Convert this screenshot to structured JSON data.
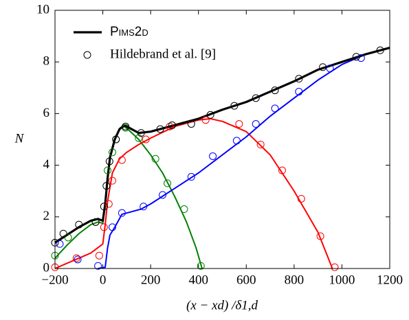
{
  "chart_data": {
    "type": "line",
    "ylabel": "N",
    "xlabel": "(x − xd) /δ1,d",
    "xlim": [
      -200,
      1200
    ],
    "ylim": [
      0,
      10
    ],
    "xticks": [
      {
        "value": -200,
        "label": "−200"
      },
      0,
      200,
      400,
      600,
      800,
      1000,
      1200
    ],
    "yticks": [
      0,
      2,
      4,
      6,
      8,
      10
    ],
    "grid": false,
    "legend": [
      "Pims2d",
      "Hildebrand et al. [9]"
    ],
    "legend_position": "upper left",
    "series": [
      {
        "style": "line",
        "color": "#008000",
        "x": [
          -200,
          -150,
          -100,
          -50,
          -20,
          0,
          10,
          20,
          30,
          50,
          70,
          90,
          110,
          150,
          200,
          250,
          300,
          350,
          390,
          415
        ],
        "values": [
          0.4,
          0.9,
          1.35,
          1.7,
          1.8,
          1.75,
          2.5,
          3.5,
          4.3,
          5.0,
          5.4,
          5.5,
          5.35,
          5.0,
          4.4,
          3.7,
          2.8,
          1.8,
          0.8,
          0
        ]
      },
      {
        "style": "line",
        "color": "#ff0000",
        "x": [
          -200,
          -150,
          -100,
          -50,
          0,
          10,
          20,
          40,
          70,
          100,
          150,
          200,
          300,
          400,
          450,
          500,
          600,
          700,
          800,
          900,
          960
        ],
        "values": [
          0,
          0.2,
          0.4,
          0.6,
          0.95,
          1.7,
          2.6,
          3.7,
          4.25,
          4.5,
          4.8,
          5.05,
          5.5,
          5.75,
          5.8,
          5.7,
          5.3,
          4.4,
          3.0,
          1.4,
          0
        ]
      },
      {
        "style": "line",
        "color": "#0000ff",
        "x": [
          -20,
          10,
          20,
          30,
          50,
          80,
          120,
          160,
          200,
          300,
          400,
          500,
          600,
          700,
          800,
          900,
          1000,
          1100,
          1200
        ],
        "values": [
          0,
          0.05,
          0.8,
          1.3,
          1.6,
          2.1,
          2.2,
          2.3,
          2.5,
          3.1,
          3.7,
          4.4,
          5.1,
          5.9,
          6.6,
          7.3,
          7.9,
          8.3,
          8.55
        ]
      },
      {
        "style": "line",
        "color": "#000000",
        "x": [
          -200,
          -150,
          -100,
          -50,
          -20,
          0,
          10,
          20,
          30,
          50,
          70,
          90,
          110,
          150,
          200,
          300,
          400,
          500,
          600,
          700,
          800,
          900,
          1000,
          1100,
          1200
        ],
        "values": [
          1.0,
          1.3,
          1.6,
          1.85,
          1.92,
          1.85,
          2.5,
          3.5,
          4.3,
          5.0,
          5.4,
          5.55,
          5.45,
          5.25,
          5.3,
          5.55,
          5.8,
          6.15,
          6.45,
          6.85,
          7.25,
          7.7,
          8.0,
          8.3,
          8.55
        ]
      },
      {
        "style": "marker",
        "color": "#008000",
        "x": [
          -200,
          -145,
          -30,
          20,
          40,
          55,
          95,
          150,
          220,
          270,
          340,
          410
        ],
        "values": [
          0.5,
          1.2,
          1.8,
          3.8,
          4.5,
          5.0,
          5.45,
          5.05,
          4.25,
          3.3,
          2.3,
          0.1
        ]
      },
      {
        "style": "marker",
        "color": "#ff0000",
        "x": [
          -200,
          -110,
          -15,
          5,
          25,
          40,
          80,
          180,
          280,
          430,
          570,
          660,
          750,
          830,
          910,
          970
        ],
        "values": [
          0.05,
          0.4,
          0.5,
          1.6,
          2.5,
          3.4,
          4.2,
          5.0,
          5.5,
          5.75,
          5.6,
          4.8,
          3.8,
          2.7,
          1.25,
          0.05
        ]
      },
      {
        "style": "marker",
        "color": "#0000ff",
        "x": [
          -180,
          -105,
          -20,
          40,
          80,
          170,
          250,
          370,
          460,
          560,
          640,
          720,
          820,
          950,
          1080
        ],
        "values": [
          0.95,
          0.35,
          0.1,
          1.6,
          2.15,
          2.4,
          2.85,
          3.55,
          4.35,
          4.95,
          5.6,
          6.2,
          6.85,
          7.75,
          8.15
        ]
      },
      {
        "style": "marker",
        "color": "#000000",
        "x": [
          -200,
          -165,
          -100,
          -30,
          5,
          15,
          28,
          55,
          95,
          160,
          240,
          290,
          370,
          450,
          550,
          640,
          720,
          820,
          920,
          1060,
          1160
        ],
        "values": [
          1.0,
          1.35,
          1.7,
          1.8,
          2.4,
          3.2,
          4.15,
          5.0,
          5.5,
          5.25,
          5.4,
          5.55,
          5.6,
          5.95,
          6.3,
          6.6,
          6.9,
          7.35,
          7.8,
          8.2,
          8.45
        ]
      }
    ]
  }
}
